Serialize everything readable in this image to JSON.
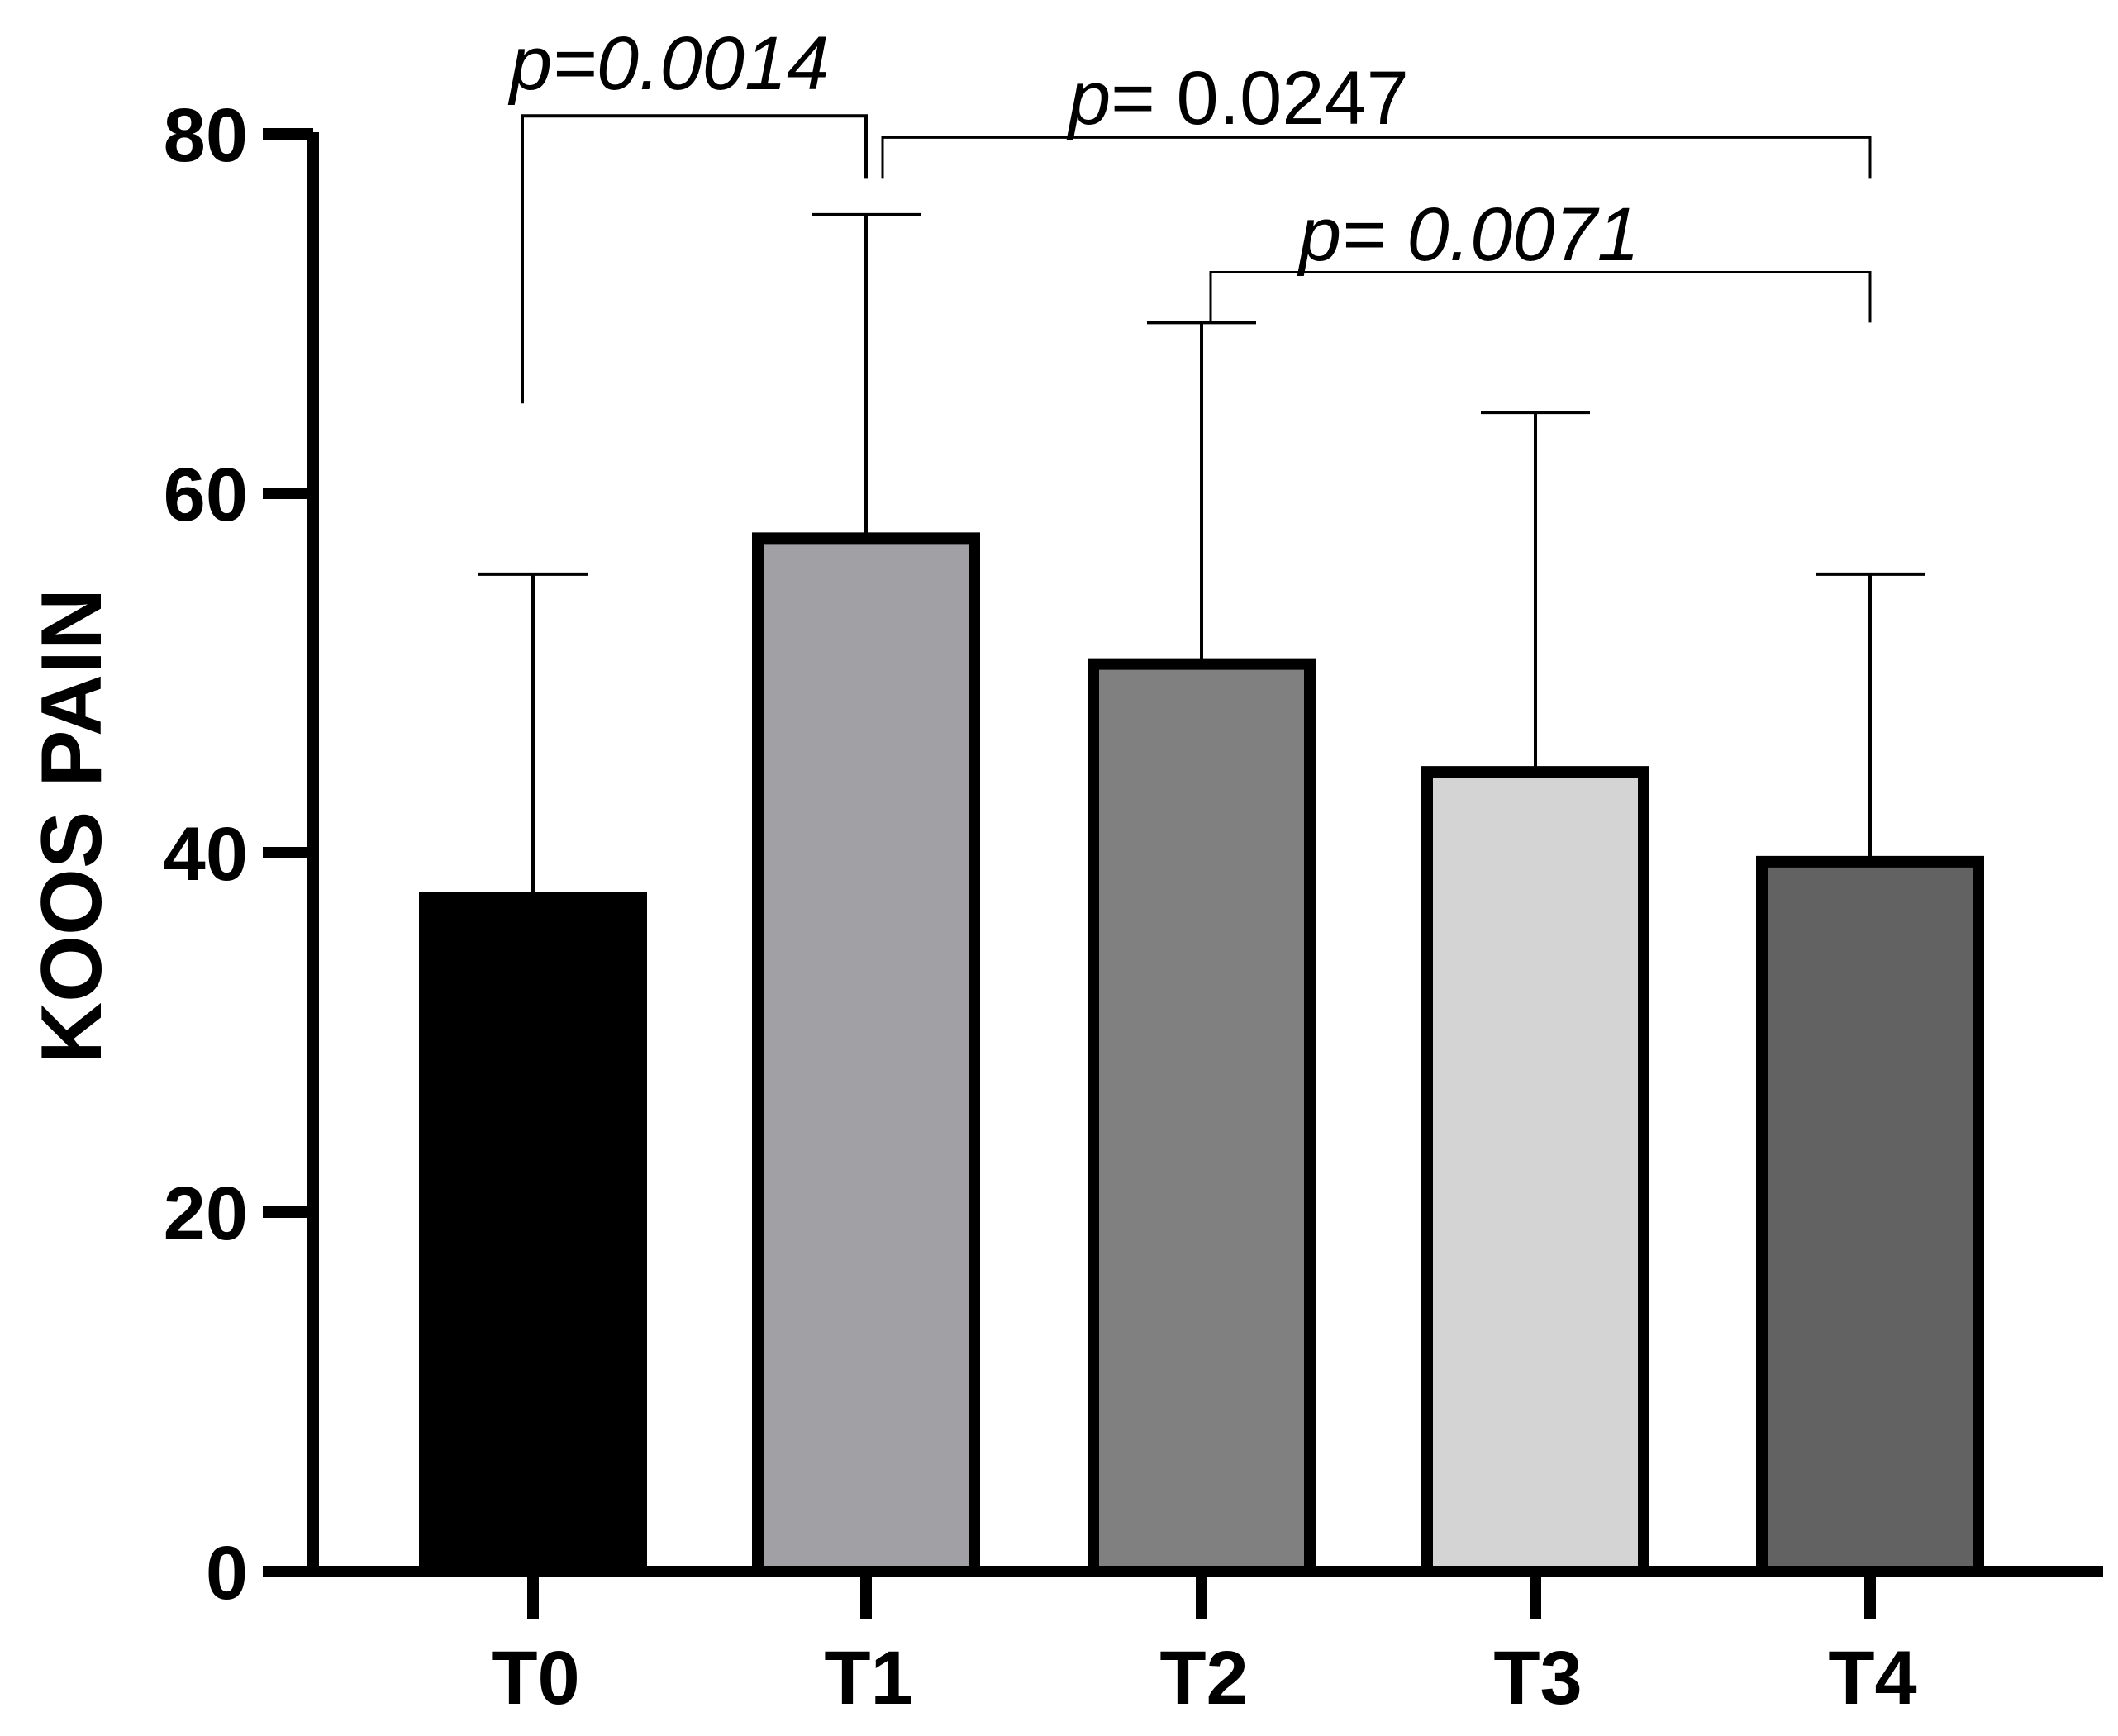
{
  "chart_data": {
    "type": "bar",
    "title": "",
    "xlabel": "",
    "ylabel": "KOOS PAIN",
    "ylim": [
      0,
      80
    ],
    "yticks": [
      0,
      20,
      40,
      60,
      80
    ],
    "ytick_labels": [
      "0",
      "20",
      "40",
      "60",
      "80"
    ],
    "categories": [
      "T0",
      "T1",
      "T2",
      "T3",
      "T4"
    ],
    "values": [
      37.5,
      57.5,
      50.5,
      44.5,
      39.5
    ],
    "error_upper": [
      55.5,
      75.5,
      69.5,
      64.5,
      55.5
    ],
    "bar_colors": [
      "#000000",
      "#a1a1a5",
      "#808080",
      "#d4d4d4",
      "#626262"
    ],
    "comparisons": [
      {
        "from": 0,
        "to": 1,
        "prefix": "p",
        "text": "=0.0014",
        "italic_value": true,
        "left_end": 65,
        "right_end": 77.5,
        "level": 81
      },
      {
        "from": 1,
        "to": 4,
        "prefix": "p",
        "text": "= 0.0247",
        "italic_value": false,
        "left_end": 77.5,
        "right_end": 77.5,
        "level": 79.8
      },
      {
        "from": 2,
        "to": 4,
        "prefix": "p",
        "text": "= 0.0071",
        "italic_value": true,
        "left_end": 69.5,
        "right_end": 69.5,
        "level": 72.3
      }
    ]
  }
}
